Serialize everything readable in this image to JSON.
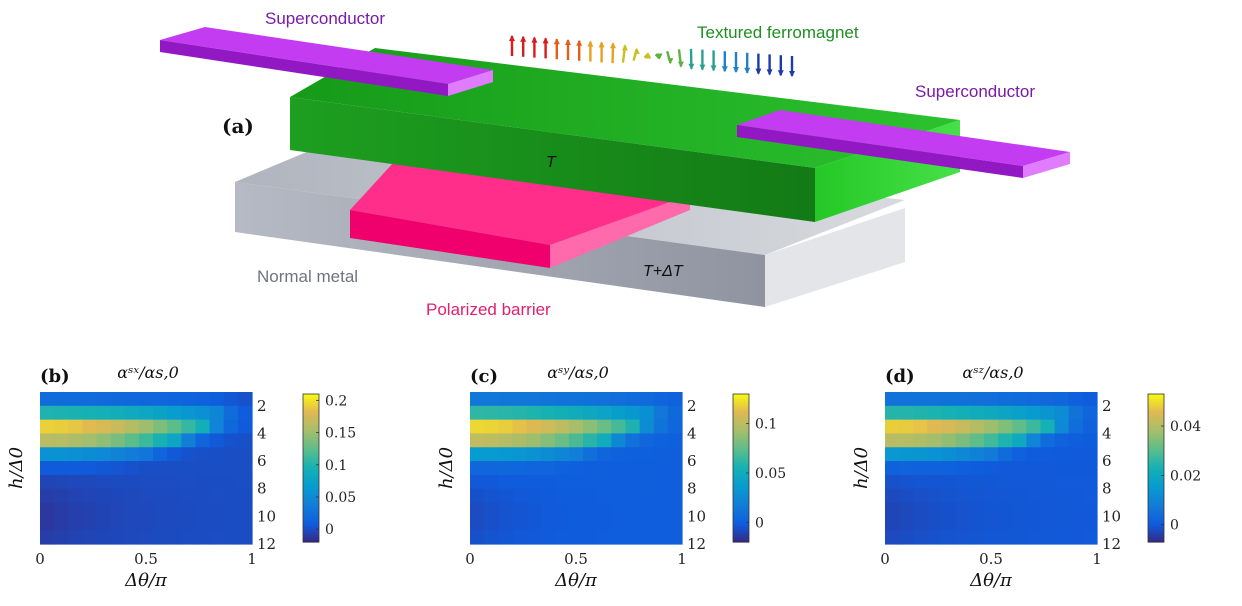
{
  "schematic": {
    "panel_label": "(a)",
    "superconductor_left": "Superconductor",
    "superconductor_right": "Superconductor",
    "ferromagnet": "Textured ferromagnet",
    "normal_metal": "Normal metal",
    "barrier": "Polarized barrier",
    "temp_top": "T",
    "temp_bottom": "T+ΔT",
    "colors": {
      "superconductor": "#c33cf0",
      "ferromagnet": "#19a31c",
      "normal_metal": "#b9bdc6",
      "barrier": "#ff2a86"
    }
  },
  "chart_data": [
    {
      "type": "heatmap",
      "panel": "(b)",
      "title": "αˢˣ/αs,0",
      "xlabel": "Δθ/π",
      "ylabel": "h/Δ0",
      "xticks": [
        "0",
        "0.5",
        "1"
      ],
      "yticks": [
        "2",
        "4",
        "6",
        "8",
        "10",
        "12"
      ],
      "xlim": [
        0,
        1
      ],
      "ylim": [
        1,
        12
      ],
      "colorbar": {
        "ticks": [
          "0.2",
          "0.15",
          "0.1",
          "0.05",
          "0"
        ],
        "range": [
          -0.02,
          0.21
        ]
      },
      "grid_shape": [
        11,
        15
      ],
      "peak": 0.2
    },
    {
      "type": "heatmap",
      "panel": "(c)",
      "title": "αˢʸ/αs,0",
      "xlabel": "Δθ/π",
      "ylabel": "h/Δ0",
      "xticks": [
        "0",
        "0.5",
        "1"
      ],
      "yticks": [
        "2",
        "4",
        "6",
        "8",
        "10",
        "12"
      ],
      "xlim": [
        0,
        1
      ],
      "ylim": [
        1,
        12
      ],
      "colorbar": {
        "ticks": [
          "0.1",
          "0.05",
          "0"
        ],
        "range": [
          -0.02,
          0.13
        ]
      },
      "grid_shape": [
        11,
        15
      ],
      "peak": 0.125
    },
    {
      "type": "heatmap",
      "panel": "(d)",
      "title": "αˢᶻ/αs,0",
      "xlabel": "Δθ/π",
      "ylabel": "h/Δ0",
      "xticks": [
        "0",
        "0.5",
        "1"
      ],
      "yticks": [
        "2",
        "4",
        "6",
        "8",
        "10",
        "12"
      ],
      "xlim": [
        0,
        1
      ],
      "ylim": [
        1,
        12
      ],
      "colorbar": {
        "ticks": [
          "0.04",
          "0.02",
          "0"
        ],
        "range": [
          -0.007,
          0.053
        ]
      },
      "grid_shape": [
        11,
        15
      ],
      "peak": 0.05
    }
  ]
}
